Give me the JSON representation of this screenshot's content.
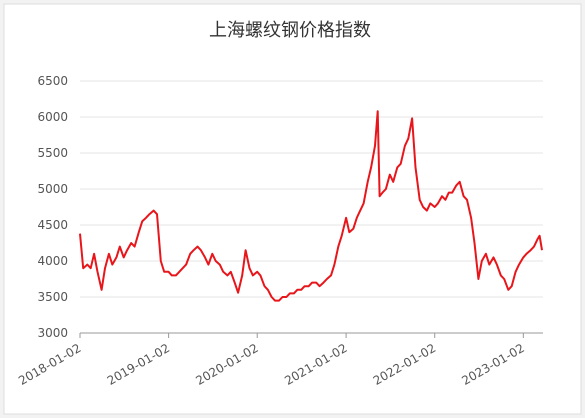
{
  "chart_data": {
    "type": "line",
    "title": "上海螺纹钢价格指数",
    "x": [
      "2018-01-02",
      "2018-01-15",
      "2018-02-01",
      "2018-02-15",
      "2018-03-01",
      "2018-03-15",
      "2018-04-01",
      "2018-04-15",
      "2018-05-01",
      "2018-05-15",
      "2018-06-01",
      "2018-06-15",
      "2018-07-01",
      "2018-07-15",
      "2018-08-01",
      "2018-08-15",
      "2018-09-01",
      "2018-09-15",
      "2018-10-01",
      "2018-10-15",
      "2018-11-01",
      "2018-11-15",
      "2018-12-01",
      "2018-12-15",
      "2019-01-02",
      "2019-01-15",
      "2019-02-01",
      "2019-02-15",
      "2019-03-01",
      "2019-03-15",
      "2019-04-01",
      "2019-04-15",
      "2019-05-01",
      "2019-05-15",
      "2019-06-01",
      "2019-06-15",
      "2019-07-01",
      "2019-07-15",
      "2019-08-01",
      "2019-08-15",
      "2019-09-01",
      "2019-09-15",
      "2019-10-01",
      "2019-10-15",
      "2019-11-01",
      "2019-11-15",
      "2019-12-01",
      "2019-12-15",
      "2020-01-02",
      "2020-01-15",
      "2020-02-01",
      "2020-02-15",
      "2020-03-01",
      "2020-03-15",
      "2020-04-01",
      "2020-04-15",
      "2020-05-01",
      "2020-05-15",
      "2020-06-01",
      "2020-06-15",
      "2020-07-01",
      "2020-07-15",
      "2020-08-01",
      "2020-08-15",
      "2020-09-01",
      "2020-09-15",
      "2020-10-01",
      "2020-10-15",
      "2020-11-01",
      "2020-11-15",
      "2020-12-01",
      "2020-12-15",
      "2021-01-02",
      "2021-01-15",
      "2021-02-01",
      "2021-02-15",
      "2021-03-01",
      "2021-03-15",
      "2021-04-01",
      "2021-04-15",
      "2021-05-01",
      "2021-05-12",
      "2021-05-20",
      "2021-06-01",
      "2021-06-15",
      "2021-07-01",
      "2021-07-15",
      "2021-08-01",
      "2021-08-15",
      "2021-09-01",
      "2021-09-15",
      "2021-10-01",
      "2021-10-15",
      "2021-11-01",
      "2021-11-15",
      "2021-12-01",
      "2021-12-15",
      "2022-01-02",
      "2022-01-15",
      "2022-02-01",
      "2022-02-15",
      "2022-03-01",
      "2022-03-15",
      "2022-04-01",
      "2022-04-15",
      "2022-05-01",
      "2022-05-15",
      "2022-06-01",
      "2022-06-15",
      "2022-07-01",
      "2022-07-15",
      "2022-08-01",
      "2022-08-15",
      "2022-09-01",
      "2022-09-15",
      "2022-10-01",
      "2022-10-15",
      "2022-11-01",
      "2022-11-15",
      "2022-12-01",
      "2022-12-15",
      "2023-01-02",
      "2023-01-15",
      "2023-02-01",
      "2023-02-15",
      "2023-03-01",
      "2023-03-10",
      "2023-03-20"
    ],
    "series": [
      {
        "name": "上海螺纹钢价格指数",
        "color": "#e8161b",
        "values": [
          4380,
          3900,
          3950,
          3900,
          4100,
          3850,
          3600,
          3900,
          4100,
          3950,
          4050,
          4200,
          4050,
          4150,
          4250,
          4200,
          4400,
          4550,
          4600,
          4650,
          4700,
          4650,
          4000,
          3850,
          3850,
          3800,
          3800,
          3850,
          3900,
          3950,
          4100,
          4150,
          4200,
          4150,
          4050,
          3950,
          4100,
          4000,
          3950,
          3850,
          3800,
          3850,
          3700,
          3560,
          3800,
          4150,
          3900,
          3800,
          3850,
          3800,
          3650,
          3600,
          3500,
          3450,
          3450,
          3500,
          3500,
          3550,
          3550,
          3600,
          3600,
          3650,
          3650,
          3700,
          3700,
          3650,
          3700,
          3750,
          3800,
          3950,
          4200,
          4350,
          4600,
          4400,
          4450,
          4600,
          4700,
          4800,
          5100,
          5300,
          5600,
          6080,
          4900,
          4950,
          5000,
          5200,
          5100,
          5300,
          5350,
          5600,
          5700,
          5980,
          5300,
          4850,
          4750,
          4700,
          4800,
          4750,
          4800,
          4900,
          4850,
          4950,
          4950,
          5050,
          5100,
          4900,
          4850,
          4600,
          4250,
          3750,
          4000,
          4100,
          3950,
          4050,
          3950,
          3800,
          3750,
          3600,
          3650,
          3850,
          3950,
          4050,
          4100,
          4150,
          4200,
          4300,
          4350,
          4150
        ]
      }
    ],
    "ylim": [
      3000,
      6500
    ],
    "yticks": [
      3000,
      3500,
      4000,
      4500,
      5000,
      5500,
      6000,
      6500
    ],
    "xlim": [
      "2018-01-02",
      "2023-03-24"
    ],
    "xticks": [
      "2018-01-02",
      "2019-01-02",
      "2020-01-02",
      "2021-01-02",
      "2022-01-02",
      "2023-01-02"
    ],
    "grid": true
  }
}
